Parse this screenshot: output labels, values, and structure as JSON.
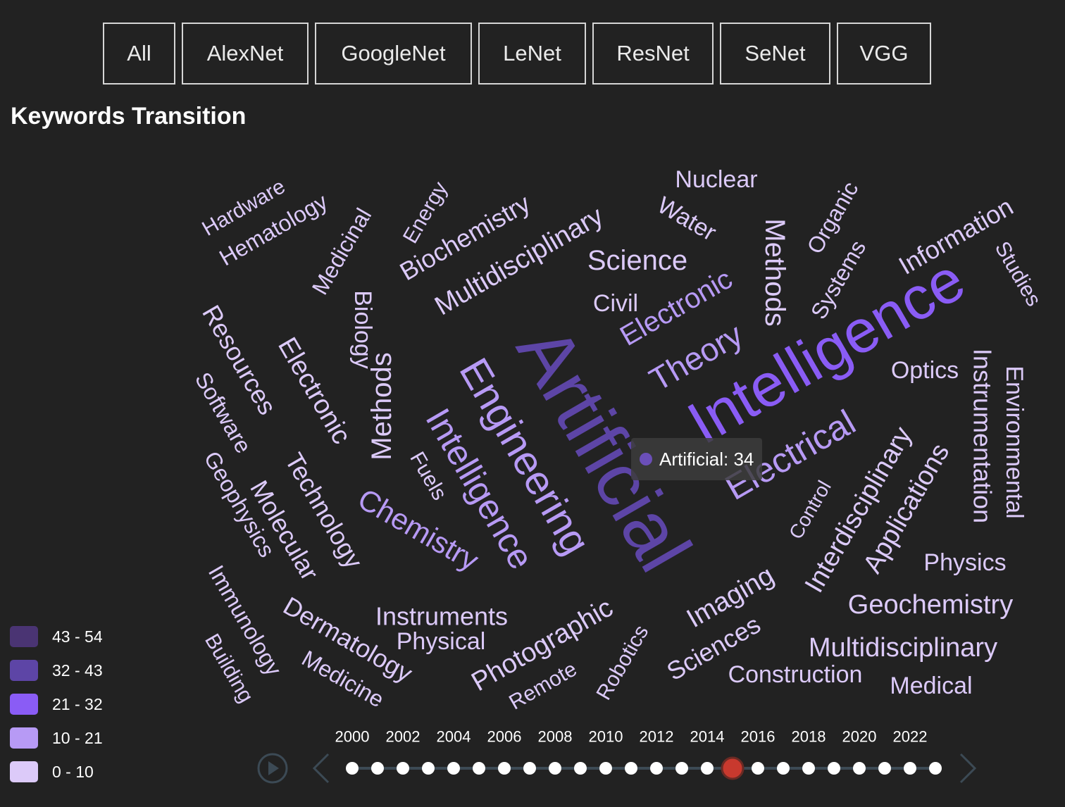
{
  "tabs": [
    "All",
    "AlexNet",
    "GoogleNet",
    "LeNet",
    "ResNet",
    "SeNet",
    "VGG"
  ],
  "title": "Keywords Transition",
  "tooltip": {
    "label": "Artificial: 34"
  },
  "legend": [
    {
      "label": "43 - 54",
      "color": "#4a3473"
    },
    {
      "label": "32 - 43",
      "color": "#5d45a6"
    },
    {
      "label": "21 - 32",
      "color": "#8a5cf5"
    },
    {
      "label": "10 - 21",
      "color": "#b79af5"
    },
    {
      "label": "0 - 10",
      "color": "#dccaf9"
    }
  ],
  "timeline": {
    "years": [
      "2000",
      "2002",
      "2004",
      "2006",
      "2008",
      "2010",
      "2012",
      "2014",
      "2016",
      "2018",
      "2020",
      "2022"
    ],
    "selected_year": "2015",
    "controls": [
      "play-icon",
      "chevron-left-icon",
      "chevron-right-icon"
    ]
  },
  "chart_data": {
    "type": "wordcloud",
    "year": "2015",
    "words": [
      {
        "text": "Artificial",
        "value": 34
      },
      {
        "text": "Intelligence",
        "value": 28
      },
      {
        "text": "Engineering",
        "value": 18
      },
      {
        "text": "Intelligence",
        "value": 16
      },
      {
        "text": "Electrical",
        "value": 14
      },
      {
        "text": "Theory",
        "value": 12
      },
      {
        "text": "Chemistry",
        "value": 10
      },
      {
        "text": "Electronic",
        "value": 10
      },
      {
        "text": "Methods",
        "value": 8
      },
      {
        "text": "Methods",
        "value": 8
      },
      {
        "text": "Multidisciplinary",
        "value": 8
      },
      {
        "text": "Electronic",
        "value": 8
      },
      {
        "text": "Science",
        "value": 7
      },
      {
        "text": "Technology",
        "value": 7
      },
      {
        "text": "Geochemistry",
        "value": 7
      },
      {
        "text": "Multidisciplinary",
        "value": 7
      },
      {
        "text": "Imaging",
        "value": 7
      },
      {
        "text": "Photographic",
        "value": 7
      },
      {
        "text": "Interdisciplinary",
        "value": 7
      },
      {
        "text": "Applications",
        "value": 6
      },
      {
        "text": "Dermatology",
        "value": 6
      },
      {
        "text": "Resources",
        "value": 6
      },
      {
        "text": "Molecular",
        "value": 6
      },
      {
        "text": "Instrumentation",
        "value": 6
      },
      {
        "text": "Biochemistry",
        "value": 6
      },
      {
        "text": "Instruments",
        "value": 6
      },
      {
        "text": "Information",
        "value": 6
      },
      {
        "text": "Sciences",
        "value": 6
      },
      {
        "text": "Biology",
        "value": 6
      },
      {
        "text": "Environmental",
        "value": 5
      },
      {
        "text": "Software",
        "value": 5
      },
      {
        "text": "Medicinal",
        "value": 5
      },
      {
        "text": "Hematology",
        "value": 5
      },
      {
        "text": "Construction",
        "value": 5
      },
      {
        "text": "Medical",
        "value": 5
      },
      {
        "text": "Systems",
        "value": 5
      },
      {
        "text": "Nuclear",
        "value": 5
      },
      {
        "text": "Water",
        "value": 5
      },
      {
        "text": "Geophysics",
        "value": 5
      },
      {
        "text": "Immunology",
        "value": 5
      },
      {
        "text": "Medicine",
        "value": 5
      },
      {
        "text": "Optics",
        "value": 5
      },
      {
        "text": "Physics",
        "value": 5
      },
      {
        "text": "Physical",
        "value": 5
      },
      {
        "text": "Organic",
        "value": 4
      },
      {
        "text": "Studies",
        "value": 4
      },
      {
        "text": "Hardware",
        "value": 4
      },
      {
        "text": "Energy",
        "value": 4
      },
      {
        "text": "Civil",
        "value": 4
      },
      {
        "text": "Fuels",
        "value": 4
      },
      {
        "text": "Building",
        "value": 4
      },
      {
        "text": "Remote",
        "value": 4
      },
      {
        "text": "Robotics",
        "value": 4
      },
      {
        "text": "Control",
        "value": 4
      }
    ]
  }
}
